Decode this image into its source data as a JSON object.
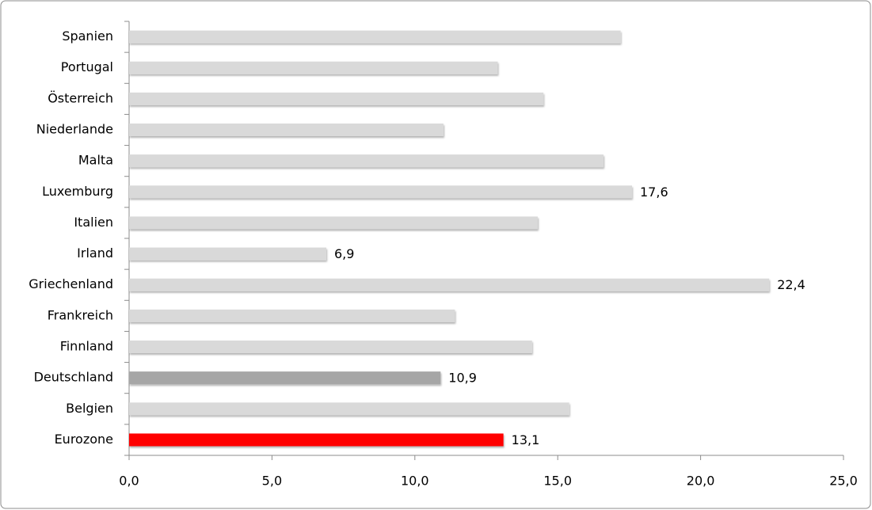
{
  "chart_data": {
    "type": "hbar",
    "categories": [
      "Spanien",
      "Portugal",
      "Österreich",
      "Niederlande",
      "Malta",
      "Luxemburg",
      "Italien",
      "Irland",
      "Griechenland",
      "Frankreich",
      "Finnland",
      "Deutschland",
      "Belgien",
      "Eurozone"
    ],
    "values": [
      17.2,
      12.9,
      14.5,
      11.0,
      16.6,
      17.6,
      14.3,
      6.9,
      22.4,
      11.4,
      14.1,
      10.9,
      15.4,
      13.1
    ],
    "value_labels": [
      null,
      null,
      null,
      null,
      null,
      "17,6",
      null,
      "6,9",
      "22,4",
      null,
      null,
      "10,9",
      null,
      "13,1"
    ],
    "colors": [
      "#d9d9d9",
      "#d9d9d9",
      "#d9d9d9",
      "#d9d9d9",
      "#d9d9d9",
      "#d9d9d9",
      "#d9d9d9",
      "#d9d9d9",
      "#d9d9d9",
      "#d9d9d9",
      "#d9d9d9",
      "#a6a6a6",
      "#d9d9d9",
      "#ff0000"
    ],
    "xlim": [
      0,
      25
    ],
    "xticks": [
      {
        "value": 0,
        "label": "0,0"
      },
      {
        "value": 5,
        "label": "5,0"
      },
      {
        "value": 10,
        "label": "10,0"
      },
      {
        "value": 15,
        "label": "15,0"
      },
      {
        "value": 20,
        "label": "20,0"
      },
      {
        "value": 25,
        "label": "25,0"
      }
    ],
    "grid": false
  }
}
